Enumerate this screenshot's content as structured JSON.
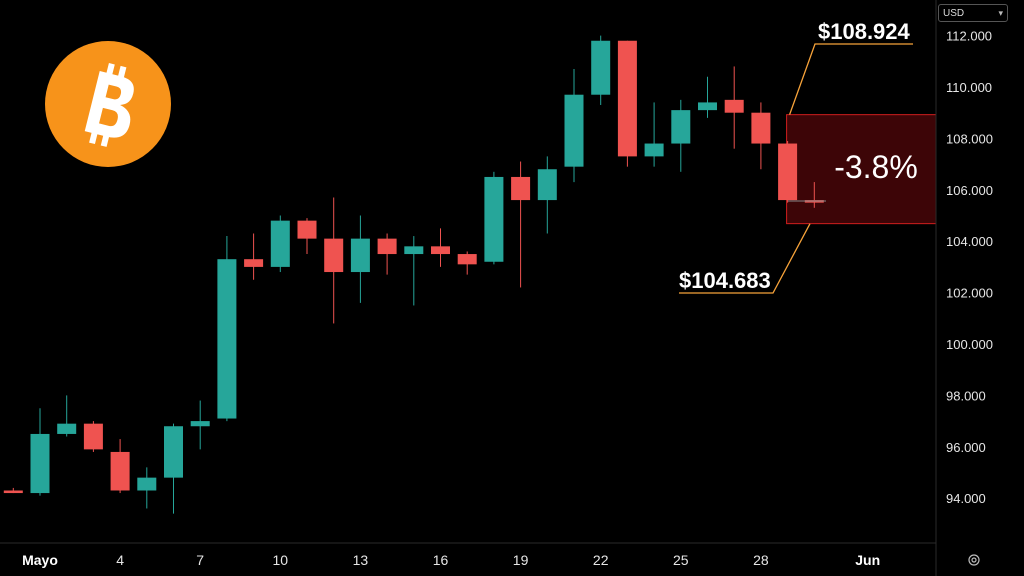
{
  "currency": {
    "label": "USD"
  },
  "logo": {
    "symbol": "₿",
    "color": "#F7931A"
  },
  "colors": {
    "up": "#26A69A",
    "down": "#EF5350",
    "accent": "#F7A33A",
    "zone_fill": "#3D0507",
    "zone_border": "#D01E1E"
  },
  "annotations": {
    "high_label": "$108.924",
    "low_label": "$104.683",
    "change_label": "-3.8%"
  },
  "chart_data": {
    "type": "candlestick",
    "ylim": [
      92500,
      113000
    ],
    "y_ticks": [
      {
        "value": 94000,
        "label": "94.000"
      },
      {
        "value": 96000,
        "label": "96.000"
      },
      {
        "value": 98000,
        "label": "98.000"
      },
      {
        "value": 100000,
        "label": "100.000"
      },
      {
        "value": 102000,
        "label": "102.000"
      },
      {
        "value": 104000,
        "label": "104.000"
      },
      {
        "value": 106000,
        "label": "106.000"
      },
      {
        "value": 108000,
        "label": "108.000"
      },
      {
        "value": 110000,
        "label": "110.000"
      },
      {
        "value": 112000,
        "label": "112.000"
      }
    ],
    "x_ticks": [
      {
        "label": "Mayo",
        "day": 1,
        "bold": true
      },
      {
        "label": "4",
        "day": 4
      },
      {
        "label": "7",
        "day": 7
      },
      {
        "label": "10",
        "day": 10
      },
      {
        "label": "13",
        "day": 13
      },
      {
        "label": "16",
        "day": 16
      },
      {
        "label": "19",
        "day": 19
      },
      {
        "label": "22",
        "day": 22
      },
      {
        "label": "25",
        "day": 25
      },
      {
        "label": "28",
        "day": 28
      },
      {
        "label": "Jun",
        "day": 32,
        "bold": true
      }
    ],
    "candles": [
      {
        "day": 0,
        "o": 94300,
        "h": 94400,
        "l": 94200,
        "c": 94200
      },
      {
        "day": 1,
        "o": 94200,
        "h": 97500,
        "l": 94100,
        "c": 96500
      },
      {
        "day": 2,
        "o": 96500,
        "h": 98000,
        "l": 96400,
        "c": 96900
      },
      {
        "day": 3,
        "o": 96900,
        "h": 97000,
        "l": 95800,
        "c": 95900
      },
      {
        "day": 4,
        "o": 95800,
        "h": 96300,
        "l": 94200,
        "c": 94300
      },
      {
        "day": 5,
        "o": 94300,
        "h": 95200,
        "l": 93600,
        "c": 94800
      },
      {
        "day": 6,
        "o": 94800,
        "h": 96900,
        "l": 93400,
        "c": 96800
      },
      {
        "day": 7,
        "o": 96800,
        "h": 97800,
        "l": 95900,
        "c": 97000
      },
      {
        "day": 8,
        "o": 97100,
        "h": 104200,
        "l": 97000,
        "c": 103300
      },
      {
        "day": 9,
        "o": 103300,
        "h": 104300,
        "l": 102500,
        "c": 103000
      },
      {
        "day": 10,
        "o": 103000,
        "h": 105000,
        "l": 102800,
        "c": 104800
      },
      {
        "day": 11,
        "o": 104800,
        "h": 104900,
        "l": 103500,
        "c": 104100
      },
      {
        "day": 12,
        "o": 104100,
        "h": 105700,
        "l": 100800,
        "c": 102800
      },
      {
        "day": 13,
        "o": 102800,
        "h": 105000,
        "l": 101600,
        "c": 104100
      },
      {
        "day": 14,
        "o": 104100,
        "h": 104300,
        "l": 102700,
        "c": 103500
      },
      {
        "day": 15,
        "o": 103500,
        "h": 104200,
        "l": 101500,
        "c": 103800
      },
      {
        "day": 16,
        "o": 103800,
        "h": 104500,
        "l": 103000,
        "c": 103500
      },
      {
        "day": 17,
        "o": 103500,
        "h": 103600,
        "l": 102700,
        "c": 103100
      },
      {
        "day": 18,
        "o": 103200,
        "h": 106700,
        "l": 103100,
        "c": 106500
      },
      {
        "day": 19,
        "o": 106500,
        "h": 107100,
        "l": 102200,
        "c": 105600
      },
      {
        "day": 20,
        "o": 105600,
        "h": 107300,
        "l": 104300,
        "c": 106800
      },
      {
        "day": 21,
        "o": 106900,
        "h": 110700,
        "l": 106300,
        "c": 109700
      },
      {
        "day": 22,
        "o": 109700,
        "h": 112000,
        "l": 109300,
        "c": 111800
      },
      {
        "day": 23,
        "o": 111800,
        "h": 111800,
        "l": 106900,
        "c": 107300
      },
      {
        "day": 24,
        "o": 107300,
        "h": 109400,
        "l": 106900,
        "c": 107800
      },
      {
        "day": 25,
        "o": 107800,
        "h": 109500,
        "l": 106700,
        "c": 109100
      },
      {
        "day": 26,
        "o": 109100,
        "h": 110400,
        "l": 108800,
        "c": 109400
      },
      {
        "day": 27,
        "o": 109500,
        "h": 110800,
        "l": 107600,
        "c": 109000
      },
      {
        "day": 28,
        "o": 109000,
        "h": 109400,
        "l": 106800,
        "c": 107800
      },
      {
        "day": 29,
        "o": 107800,
        "h": 107900,
        "l": 105500,
        "c": 105600
      },
      {
        "day": 30,
        "o": 105600,
        "h": 106300,
        "l": 105300,
        "c": 105500
      }
    ],
    "price_zone": {
      "from_day": 29,
      "high": 108924,
      "low": 104683
    }
  }
}
